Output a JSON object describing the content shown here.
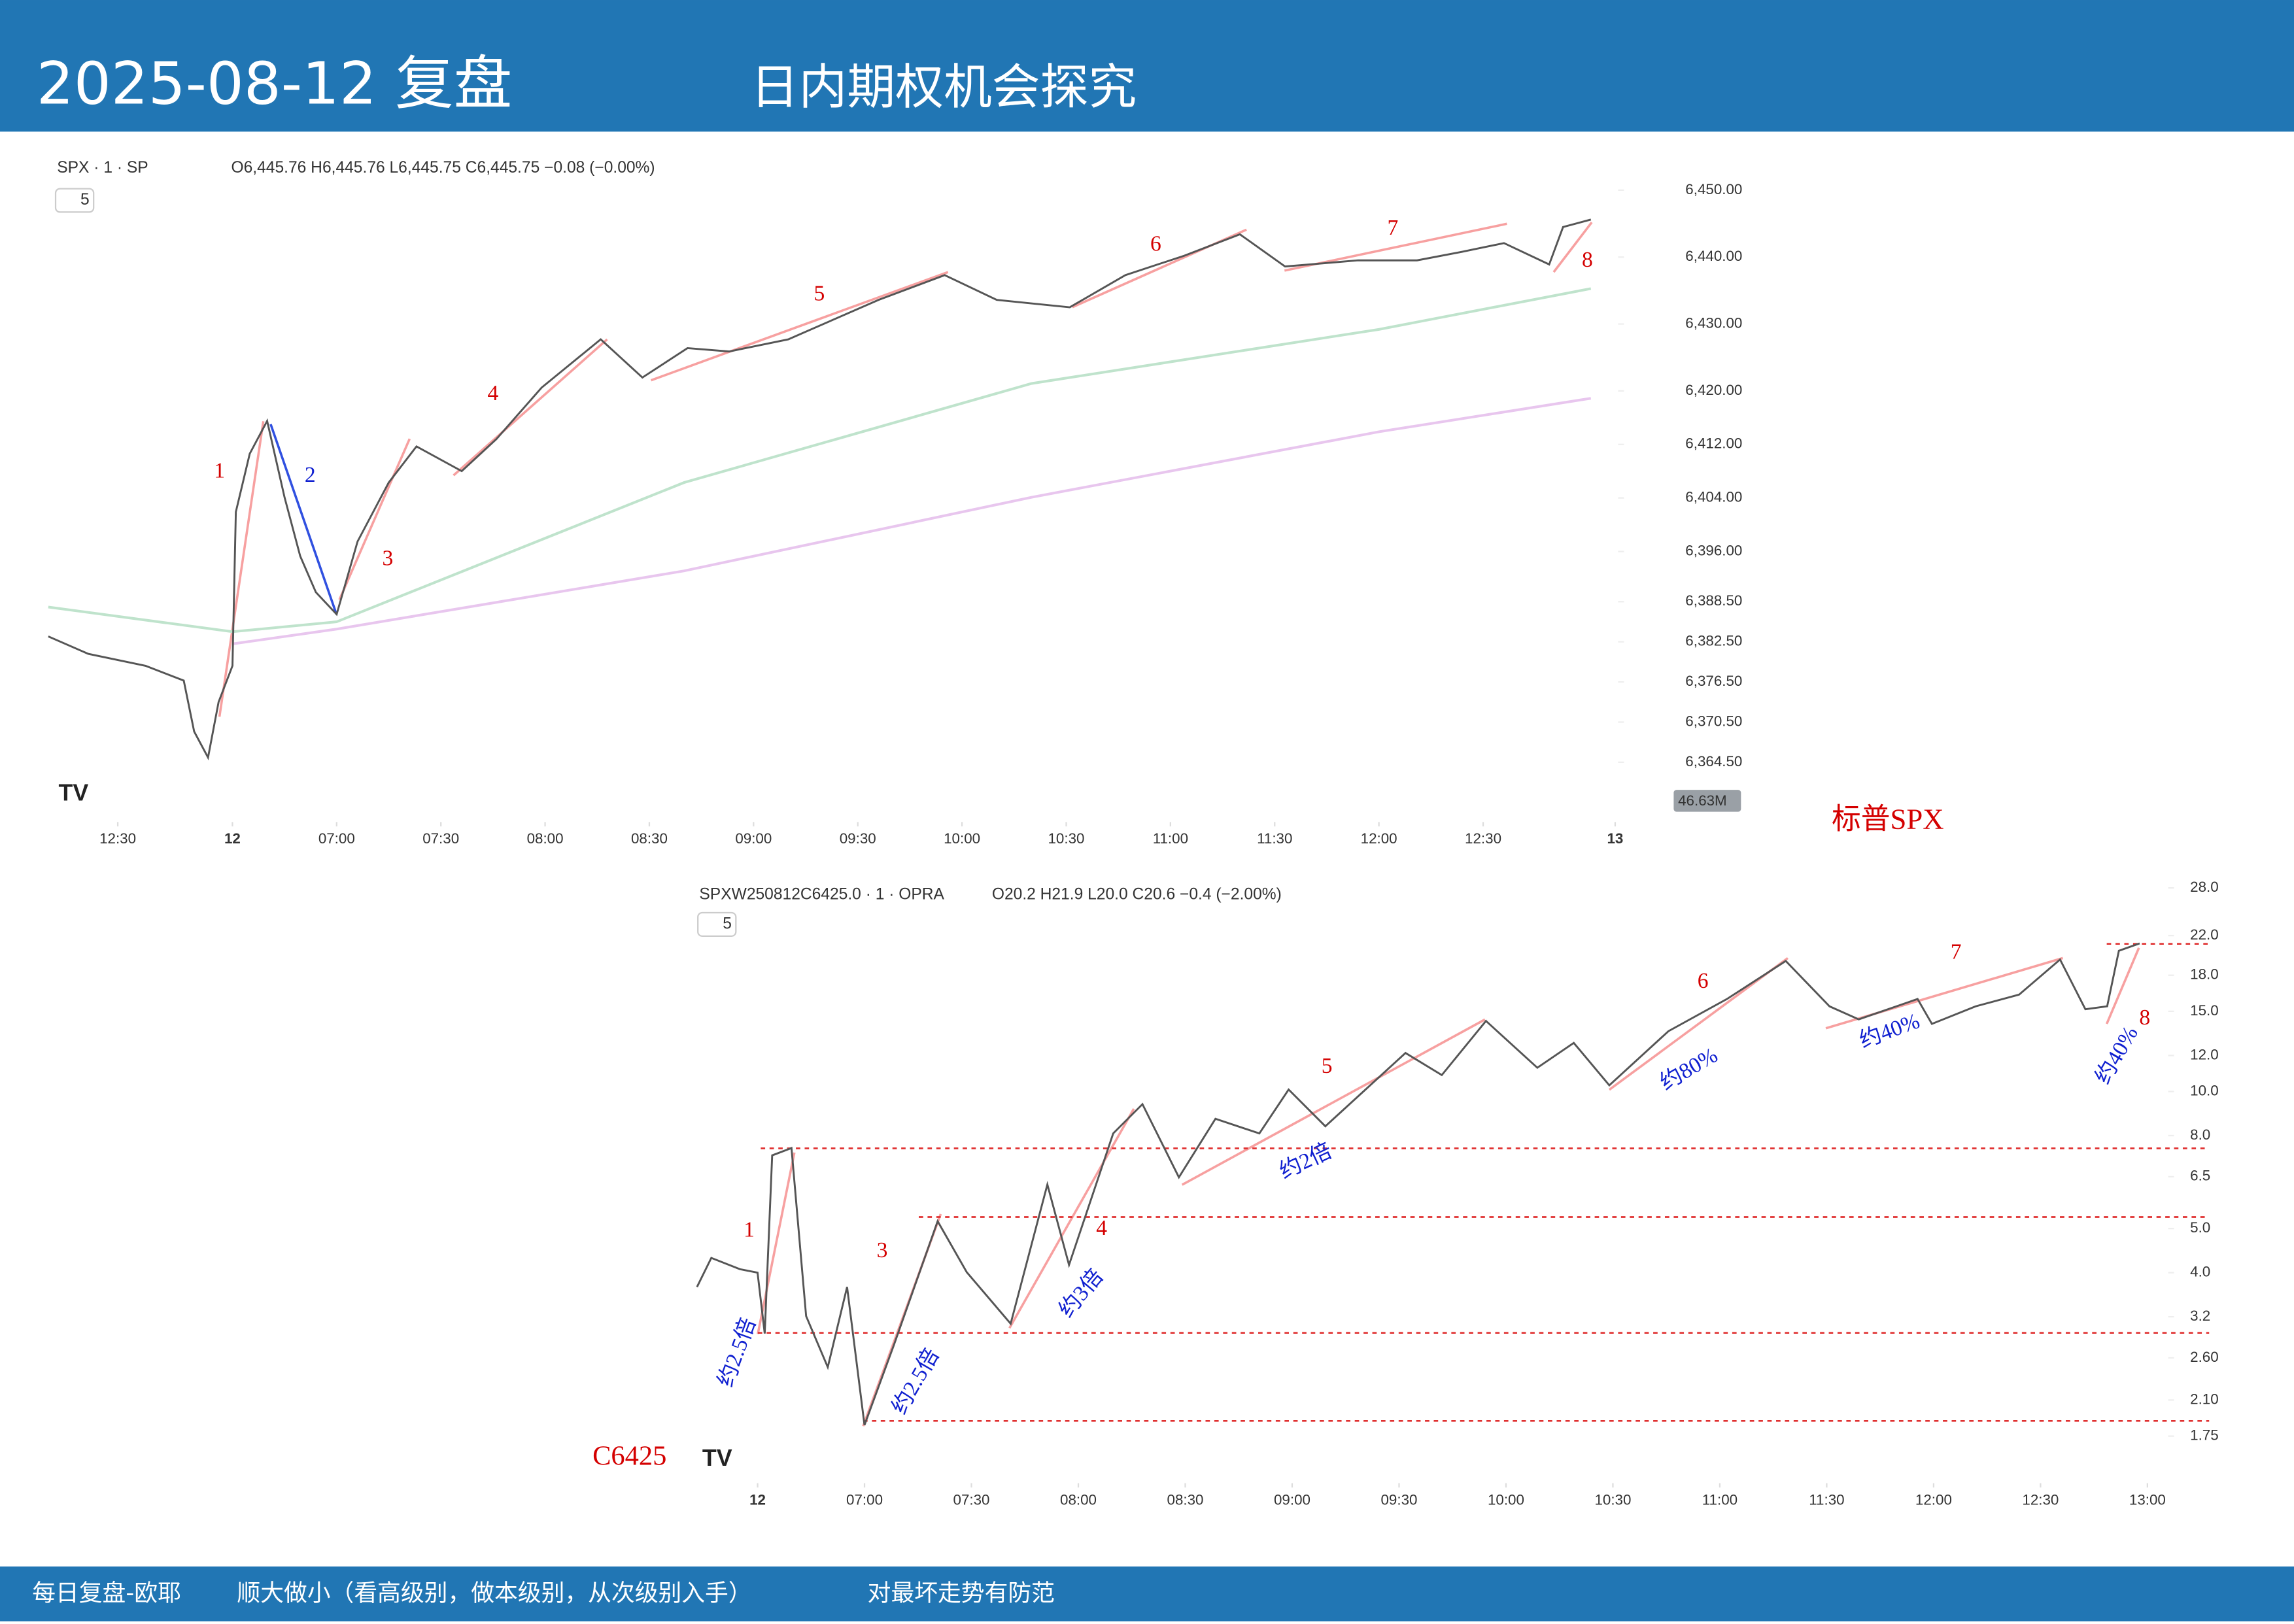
{
  "header": {
    "title": "2025-08-12 复盘",
    "subtitle": "日内期权机会探究"
  },
  "footer": {
    "items": [
      "每日复盘-欧耶",
      "顺大做小（看高级别，做本级别，从次级别入手）",
      "对最坏走势有防范"
    ]
  },
  "chart_data": [
    {
      "type": "line",
      "title": "SPX · 1 · SP",
      "ohlc": "O6,445.76 H6,445.76 L6,445.75 C6,445.75 −0.08 (−0.00%)",
      "interval": "5",
      "label": "标普SPX",
      "volume_label": "46.63M",
      "log": false,
      "xlim": [
        -83,
        368
      ],
      "ylim": [
        6356,
        6457
      ],
      "xticks": [
        {
          "value": -63,
          "label": "12:30"
        },
        {
          "value": -30,
          "label": "12"
        },
        {
          "value": 0,
          "label": "07:00"
        },
        {
          "value": 30,
          "label": "07:30"
        },
        {
          "value": 60,
          "label": "08:00"
        },
        {
          "value": 90,
          "label": "08:30"
        },
        {
          "value": 120,
          "label": "09:00"
        },
        {
          "value": 150,
          "label": "09:30"
        },
        {
          "value": 180,
          "label": "10:00"
        },
        {
          "value": 210,
          "label": "10:30"
        },
        {
          "value": 240,
          "label": "11:00"
        },
        {
          "value": 270,
          "label": "11:30"
        },
        {
          "value": 300,
          "label": "12:00"
        },
        {
          "value": 330,
          "label": "12:30"
        },
        {
          "value": 368,
          "label": "13"
        }
      ],
      "yticks": [
        {
          "value": 6450,
          "label": "6,450.00"
        },
        {
          "value": 6440,
          "label": "6,440.00"
        },
        {
          "value": 6430,
          "label": "6,430.00"
        },
        {
          "value": 6420,
          "label": "6,420.00"
        },
        {
          "value": 6412,
          "label": "6,412.00"
        },
        {
          "value": 6404,
          "label": "6,404.00"
        },
        {
          "value": 6396,
          "label": "6,396.00"
        },
        {
          "value": 6388.5,
          "label": "6,388.50"
        },
        {
          "value": 6382.5,
          "label": "6,382.50"
        },
        {
          "value": 6376.5,
          "label": "6,376.50"
        },
        {
          "value": 6370.5,
          "label": "6,370.50"
        },
        {
          "value": 6364.5,
          "label": "6,364.50"
        }
      ],
      "series": [
        {
          "color": "#555555",
          "x": [
            -83,
            -71.5,
            -55,
            -44,
            -41,
            -37,
            -34,
            -30,
            -29,
            -25,
            -20,
            -15,
            -10.5,
            -6,
            0,
            6,
            15,
            23,
            36,
            46,
            59,
            76,
            88,
            101,
            113,
            130,
            156,
            175,
            190,
            211,
            227,
            244,
            260,
            273,
            294,
            311,
            324,
            336,
            349,
            353,
            361
          ],
          "values": [
            6383.3,
            6380.7,
            6378.9,
            6376.7,
            6369.1,
            6365.2,
            6373.5,
            6378.9,
            6401.9,
            6410.6,
            6415.5,
            6404.1,
            6395.3,
            6389.9,
            6386.6,
            6397.5,
            6406.3,
            6411.7,
            6408.0,
            6412.8,
            6420.5,
            6427.7,
            6422.0,
            6426.4,
            6425.9,
            6427.7,
            6433.6,
            6437.3,
            6433.6,
            6432.5,
            6437.3,
            6440.2,
            6443.4,
            6438.6,
            6439.5,
            6439.5,
            6440.8,
            6442.1,
            6438.9,
            6444.5,
            6445.6
          ]
        },
        {
          "color": "#bfe3cc",
          "x": [
            -83,
            -30,
            0,
            100,
            200,
            300,
            361
          ],
          "values": [
            6387.7,
            6384.0,
            6385.5,
            6406.3,
            6421.1,
            6429.2,
            6435.3
          ]
        },
        {
          "color": "#e8c6ee",
          "x": [
            -30,
            0,
            100,
            200,
            300,
            361
          ],
          "values": [
            6382.2,
            6384.4,
            6393.1,
            6404.1,
            6413.9,
            6418.9
          ]
        }
      ],
      "annotations": [
        "1",
        "2",
        "3",
        "4",
        "5",
        "6",
        "7",
        "8"
      ]
    },
    {
      "type": "line",
      "title": "SPXW250812C6425.0 · 1 · OPRA",
      "ohlc": "O20.2 H21.9 L20.0 C20.6 −0.4 (−2.00%)",
      "interval": "5",
      "label": "C6425",
      "log": true,
      "xlim": [
        -48,
        365
      ],
      "ylim": [
        1.4,
        29.5
      ],
      "xticks": [
        {
          "value": -30,
          "label": "12"
        },
        {
          "value": 0,
          "label": "07:00"
        },
        {
          "value": 30,
          "label": "07:30"
        },
        {
          "value": 60,
          "label": "08:00"
        },
        {
          "value": 90,
          "label": "08:30"
        },
        {
          "value": 120,
          "label": "09:00"
        },
        {
          "value": 150,
          "label": "09:30"
        },
        {
          "value": 180,
          "label": "10:00"
        },
        {
          "value": 210,
          "label": "10:30"
        },
        {
          "value": 240,
          "label": "11:00"
        },
        {
          "value": 270,
          "label": "11:30"
        },
        {
          "value": 300,
          "label": "12:00"
        },
        {
          "value": 330,
          "label": "12:30"
        },
        {
          "value": 360,
          "label": "13:00"
        }
      ],
      "yticks": [
        {
          "value": 28,
          "label": "28.0"
        },
        {
          "value": 22,
          "label": "22.0"
        },
        {
          "value": 18,
          "label": "18.0"
        },
        {
          "value": 15,
          "label": "15.0"
        },
        {
          "value": 12,
          "label": "12.0"
        },
        {
          "value": 10,
          "label": "10.0"
        },
        {
          "value": 8,
          "label": "8.0"
        },
        6.5,
        {
          "value": 5,
          "label": "5.0"
        },
        {
          "value": 4,
          "label": "4.0"
        },
        3.2,
        {
          "value": 2.6,
          "label": "2.60"
        },
        {
          "value": 2.1,
          "label": "2.10"
        },
        1.75
      ],
      "series": [
        {
          "color": "#555555",
          "x": [
            -47,
            -43,
            -35,
            -30,
            -28,
            -25.9,
            -20.5,
            -16.4,
            -10.3,
            -4.9,
            0,
            8.2,
            20.5,
            28.7,
            41,
            51.3,
            57.4,
            69.8,
            78,
            88.2,
            98.5,
            110.8,
            119,
            129.3,
            151.8,
            162,
            174.4,
            188.8,
            199,
            209,
            225.6,
            242,
            258.5,
            270.8,
            279,
            295.5,
            299.5,
            311.8,
            324,
            335.5,
            342.6,
            348.7,
            352,
            357.8
          ],
          "values": [
            3.72,
            4.31,
            4.07,
            4.0,
            2.94,
            7.24,
            7.51,
            3.21,
            2.48,
            3.72,
            1.85,
            2.77,
            5.19,
            4.01,
            3.09,
            6.25,
            4.16,
            8.09,
            9.38,
            6.48,
            8.71,
            8.09,
            10.1,
            8.39,
            12.15,
            10.87,
            14.29,
            11.28,
            12.79,
            10.32,
            13.57,
            15.97,
            19.35,
            15.39,
            14.4,
            15.97,
            14.08,
            15.39,
            16.32,
            19.49,
            15.16,
            15.39,
            20.38,
            21.14
          ]
        }
      ],
      "reference_lines": [
        7.5,
        5.3,
        2.95,
        1.89,
        21.1
      ],
      "annotations": [
        "1",
        "3",
        "4",
        "5",
        "6",
        "7",
        "8",
        "约2.5倍",
        "约2.5倍",
        "约3倍",
        "约2倍",
        "约80%",
        "约40%",
        "约40%"
      ]
    }
  ]
}
